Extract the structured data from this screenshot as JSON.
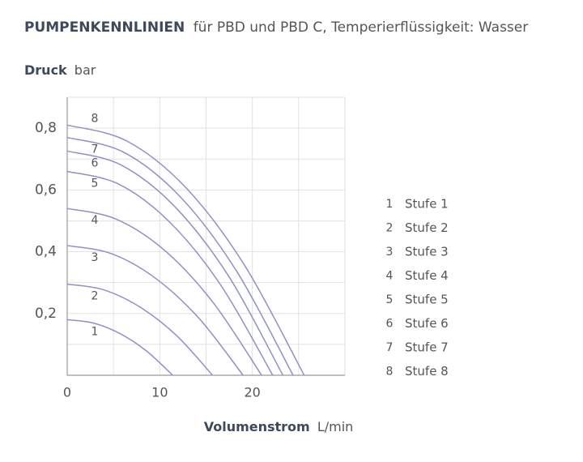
{
  "chart_data": {
    "type": "line",
    "title_bold": "PUMPENKENNLINIEN",
    "title": "für PBD und PBD C, Temperierflüssigkeit: Wasser",
    "y_label": "Druck",
    "y_unit": "bar",
    "x_label": "Volumenstrom",
    "x_unit": "L/min",
    "xlim": [
      0,
      30
    ],
    "xticks": [
      0,
      10,
      20
    ],
    "xminor_ticks": [
      5,
      15,
      25,
      30
    ],
    "ylim": [
      0,
      0.9
    ],
    "yticks": [
      {
        "value": 0.2,
        "label": "0,2"
      },
      {
        "value": 0.4,
        "label": "0,4"
      },
      {
        "value": 0.6,
        "label": "0,6"
      },
      {
        "value": 0.8,
        "label": "0,8"
      }
    ],
    "yminor_ticks": [
      0.1,
      0.3,
      0.5,
      0.7,
      0.9
    ],
    "grid": true,
    "color": "#8e91c4",
    "series": [
      {
        "label": "1",
        "name": "Stufe 1",
        "x": [
          0,
          2.85,
          5.7,
          8.55,
          11.4
        ],
        "values": [
          0.18,
          0.169,
          0.135,
          0.079,
          0
        ]
      },
      {
        "label": "2",
        "name": "Stufe 2",
        "x": [
          0,
          3.9,
          7.85,
          11.8,
          15.7
        ],
        "values": [
          0.295,
          0.277,
          0.221,
          0.129,
          0
        ]
      },
      {
        "label": "3",
        "name": "Stufe 3",
        "x": [
          0,
          4.75,
          9.5,
          14.25,
          19
        ],
        "values": [
          0.42,
          0.394,
          0.315,
          0.184,
          0
        ]
      },
      {
        "label": "4",
        "name": "Stufe 4",
        "x": [
          0,
          5.25,
          10.5,
          15.75,
          21
        ],
        "values": [
          0.54,
          0.506,
          0.405,
          0.236,
          0
        ]
      },
      {
        "label": "5",
        "name": "Stufe 5",
        "x": [
          0,
          5.55,
          11.1,
          16.65,
          22.2
        ],
        "values": [
          0.66,
          0.619,
          0.495,
          0.289,
          0
        ]
      },
      {
        "label": "6",
        "name": "Stufe 6",
        "x": [
          0,
          5.8,
          11.65,
          17.5,
          23.3
        ],
        "values": [
          0.726,
          0.681,
          0.545,
          0.318,
          0
        ]
      },
      {
        "label": "7",
        "name": "Stufe 7",
        "x": [
          0,
          6.1,
          12.2,
          18.3,
          24.4
        ],
        "values": [
          0.77,
          0.722,
          0.578,
          0.337,
          0
        ]
      },
      {
        "label": "8",
        "name": "Stufe 8",
        "x": [
          0,
          6.4,
          12.8,
          19.2,
          25.6
        ],
        "values": [
          0.81,
          0.759,
          0.608,
          0.354,
          0
        ]
      }
    ]
  }
}
